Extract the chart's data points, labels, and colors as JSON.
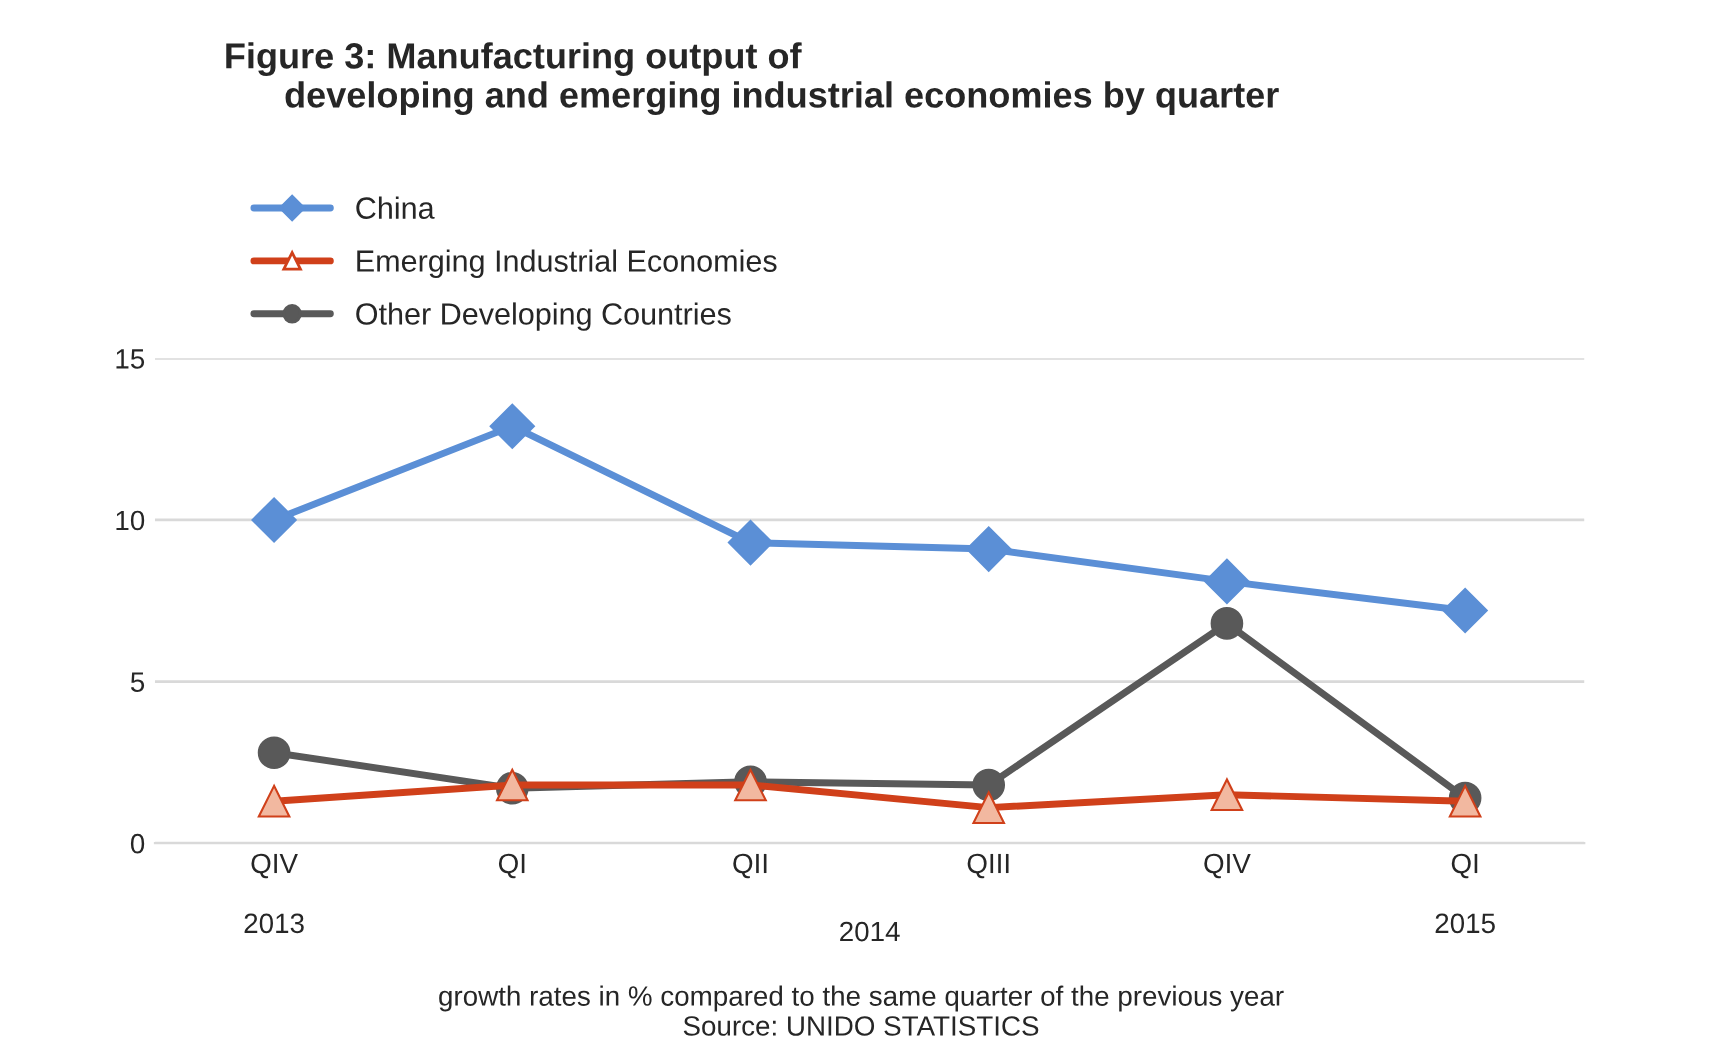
{
  "chart_data": {
    "type": "line",
    "title": "Figure 3: Manufacturing output of\n      developing and emerging industrial economies by quarter",
    "categories": [
      "QIV\n\n2013",
      "QI",
      "QII",
      "QIII",
      "QIV",
      "QI\n\n2015"
    ],
    "series": [
      {
        "name": "China",
        "color": "#5b8fd6",
        "marker": "diamond",
        "values": [
          10.0,
          12.9,
          9.3,
          9.1,
          8.1,
          7.2
        ]
      },
      {
        "name": "Emerging Industrial Economies",
        "color": "#d0401a",
        "marker": "triangle",
        "values": [
          1.3,
          1.8,
          1.8,
          1.1,
          1.5,
          1.3
        ]
      },
      {
        "name": "Other Developing Countries",
        "color": "#595959",
        "marker": "circle",
        "values": [
          2.8,
          1.7,
          1.9,
          1.8,
          6.8,
          1.4
        ]
      }
    ],
    "ylim": [
      0,
      15
    ],
    "yticks": [
      0,
      5,
      10,
      15
    ],
    "grid": "y",
    "legend": "top left",
    "annotations": [
      "2014",
      "growth rates in % compared to the same quarter of the previous year\nSource: UNIDO STATISTICS"
    ]
  }
}
